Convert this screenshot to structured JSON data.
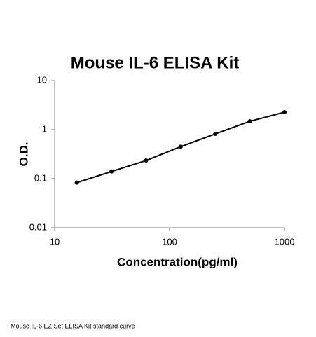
{
  "chart_data": {
    "type": "scatter",
    "title": "Mouse IL-6 ELISA Kit",
    "x_label": "Concentration(pg/ml)",
    "y_label": "O.D.",
    "x": [
      15.6,
      31.25,
      62.5,
      125,
      250,
      500,
      1000
    ],
    "series": [
      {
        "values": [
          0.083,
          0.14,
          0.235,
          0.45,
          0.82,
          1.48,
          2.27
        ],
        "color": "#000000"
      }
    ],
    "xscale": "log",
    "yscale": "log",
    "xlim": [
      10,
      1000
    ],
    "ylim": [
      0.01,
      10
    ],
    "xticks": [
      10,
      100,
      1000
    ],
    "yticks": [
      0.01,
      0.1,
      1,
      10
    ],
    "grid": false
  },
  "caption": "Mouse IL-6 EZ Set ELISA Kit standard curve"
}
